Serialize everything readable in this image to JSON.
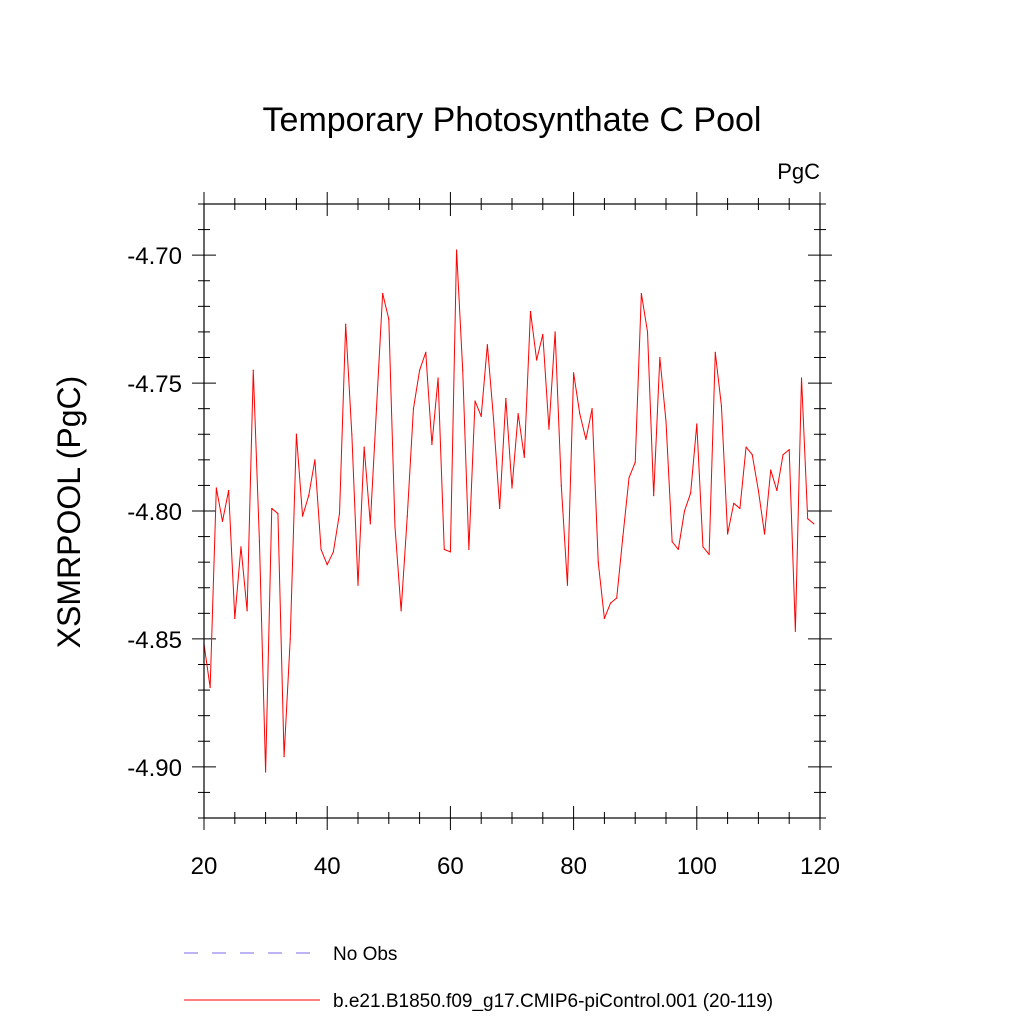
{
  "chart_data": {
    "type": "line",
    "title": "Temporary Photosynthate C Pool",
    "units": "PgC",
    "xlabel": "",
    "ylabel": "XSMRPOOL  (PgC)",
    "xlim": [
      20,
      120
    ],
    "ylim": [
      -4.92,
      -4.68
    ],
    "x_ticks": [
      20,
      40,
      60,
      80,
      100,
      120
    ],
    "x_tick_labels": [
      "20",
      "40",
      "60",
      "80",
      "100",
      "120"
    ],
    "y_ticks": [
      -4.7,
      -4.75,
      -4.8,
      -4.85,
      -4.9
    ],
    "y_tick_labels": [
      "-4.70",
      "-4.75",
      "-4.80",
      "-4.85",
      "-4.90"
    ],
    "grid": false,
    "legend": [
      {
        "label": "No Obs",
        "color": "#7b68ee",
        "style": "dashed"
      },
      {
        "label": "b.e21.B1850.f09_g17.CMIP6-piControl.001 (20-119)",
        "color": "#ff0000",
        "style": "solid"
      }
    ],
    "series": [
      {
        "name": "b.e21.B1850.f09_g17.CMIP6-piControl.001 (20-119)",
        "color": "#ff0000",
        "x": [
          20,
          21,
          22,
          23,
          24,
          25,
          26,
          27,
          28,
          29,
          30,
          31,
          32,
          33,
          34,
          35,
          36,
          37,
          38,
          39,
          40,
          41,
          42,
          43,
          44,
          45,
          46,
          47,
          48,
          49,
          50,
          51,
          52,
          53,
          54,
          55,
          56,
          57,
          58,
          59,
          60,
          61,
          62,
          63,
          64,
          65,
          66,
          67,
          68,
          69,
          70,
          71,
          72,
          73,
          74,
          75,
          76,
          77,
          78,
          79,
          80,
          81,
          82,
          83,
          84,
          85,
          86,
          87,
          88,
          89,
          90,
          91,
          92,
          93,
          94,
          95,
          96,
          97,
          98,
          99,
          100,
          101,
          102,
          103,
          104,
          105,
          106,
          107,
          108,
          109,
          110,
          111,
          112,
          113,
          114,
          115,
          116,
          117,
          118,
          119
        ],
        "values": [
          -4.852,
          -4.869,
          -4.791,
          -4.804,
          -4.792,
          -4.842,
          -4.814,
          -4.839,
          -4.745,
          -4.812,
          -4.902,
          -4.799,
          -4.801,
          -4.896,
          -4.85,
          -4.77,
          -4.802,
          -4.794,
          -4.78,
          -4.815,
          -4.821,
          -4.816,
          -4.801,
          -4.727,
          -4.77,
          -4.829,
          -4.775,
          -4.805,
          -4.76,
          -4.715,
          -4.725,
          -4.806,
          -4.839,
          -4.802,
          -4.76,
          -4.745,
          -4.738,
          -4.774,
          -4.748,
          -4.815,
          -4.816,
          -4.698,
          -4.745,
          -4.815,
          -4.757,
          -4.763,
          -4.735,
          -4.764,
          -4.799,
          -4.756,
          -4.791,
          -4.762,
          -4.779,
          -4.722,
          -4.741,
          -4.731,
          -4.768,
          -4.73,
          -4.79,
          -4.829,
          -4.746,
          -4.762,
          -4.772,
          -4.76,
          -4.82,
          -4.842,
          -4.836,
          -4.834,
          -4.81,
          -4.787,
          -4.781,
          -4.715,
          -4.73,
          -4.794,
          -4.74,
          -4.765,
          -4.812,
          -4.815,
          -4.8,
          -4.793,
          -4.766,
          -4.814,
          -4.817,
          -4.738,
          -4.759,
          -4.809,
          -4.797,
          -4.799,
          -4.775,
          -4.778,
          -4.792,
          -4.809,
          -4.784,
          -4.792,
          -4.778,
          -4.776,
          -4.847,
          -4.748,
          -4.803,
          -4.805
        ]
      }
    ]
  }
}
